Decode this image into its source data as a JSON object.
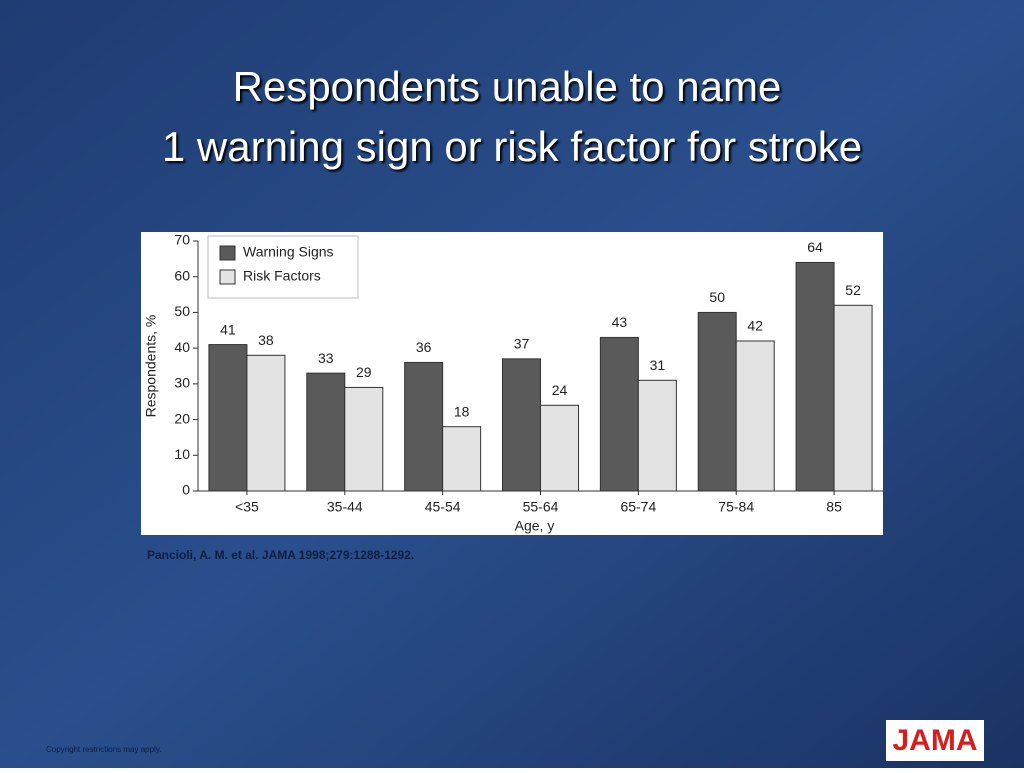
{
  "title_lines": [
    "Respondents unable to name",
    "1 warning sign or risk factor for stroke"
  ],
  "citation": "Pancioli, A. M. et al. JAMA 1998;279:1288-1292.",
  "copyright": "Copyright restrictions may apply.",
  "logo": "JAMA",
  "chart_data": {
    "type": "bar",
    "categories": [
      "<35",
      "35-44",
      "45-54",
      "55-64",
      "65-74",
      "75-84",
      "85"
    ],
    "series": [
      {
        "name": "Warning Signs",
        "color": "#5a5a5a",
        "values": [
          41,
          33,
          36,
          37,
          43,
          50,
          64
        ]
      },
      {
        "name": "Risk Factors",
        "color": "#e3e3e3",
        "values": [
          38,
          29,
          18,
          24,
          31,
          42,
          52
        ]
      }
    ],
    "ylim": [
      0,
      70
    ],
    "yticks": [
      0,
      10,
      20,
      30,
      40,
      50,
      60,
      70
    ],
    "y_label": "Respondents, %",
    "x_label": "Age, y",
    "legend": "top-left",
    "grid": false
  }
}
